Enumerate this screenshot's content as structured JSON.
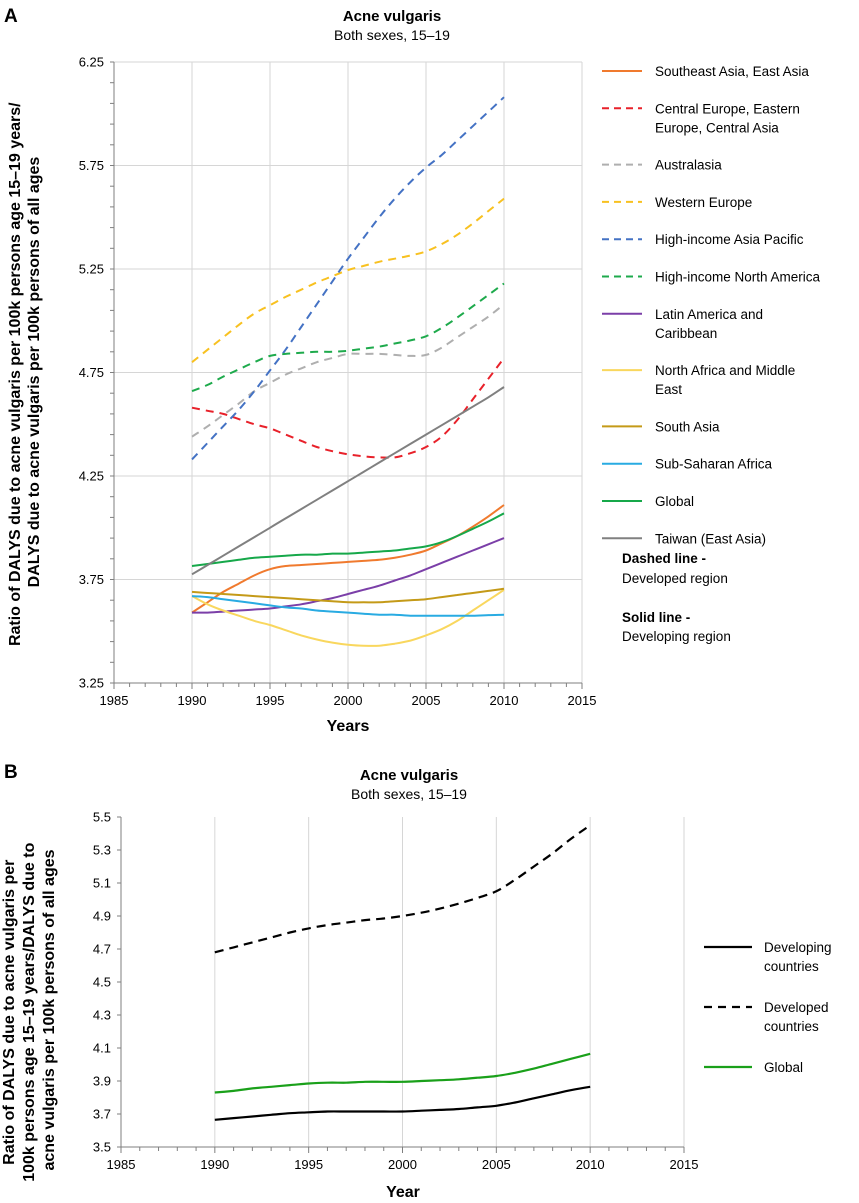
{
  "panels": [
    {
      "letter": "A",
      "chart_data": {
        "type": "line",
        "title": "Acne vulgaris",
        "subtitle": "Both sexes, 15–19",
        "xlabel": "Years",
        "ylabel": [
          "Ratio of DALYS due to acne vulgaris per 100k persons age 15–19 years/",
          "DALYS due to acne vulgaris per 100k persons of all ages"
        ],
        "xlim": [
          1985,
          2015
        ],
        "ylim": [
          3.25,
          6.25
        ],
        "xticks": [
          1985,
          1990,
          1995,
          2000,
          2005,
          2010,
          2015
        ],
        "yticks": [
          3.25,
          3.75,
          4.25,
          4.75,
          5.25,
          5.75,
          6.25
        ],
        "ytick_labels": [
          "3.25",
          "3.75",
          "4.25",
          "4.75",
          "5.25",
          "5.75",
          "6.25"
        ],
        "grid": "horizontal and vertical",
        "legend_position": "right",
        "x": [
          1990,
          1991,
          1992,
          1993,
          1994,
          1995,
          1996,
          1997,
          1998,
          1999,
          2000,
          2001,
          2002,
          2003,
          2004,
          2005,
          2006,
          2007,
          2008,
          2009,
          2010
        ],
        "series": [
          {
            "name": "Southeast Asia, East Asia",
            "color": "#F07A2E",
            "dash": false,
            "values": [
              3.59,
              3.64,
              3.69,
              3.73,
              3.77,
              3.8,
              3.815,
              3.82,
              3.825,
              3.83,
              3.835,
              3.84,
              3.845,
              3.855,
              3.87,
              3.89,
              3.925,
              3.96,
              4.005,
              4.055,
              4.11
            ]
          },
          {
            "name": "Central Europe, Eastern Europe, Central Asia",
            "color": "#E8212A",
            "dash": true,
            "values": [
              4.58,
              4.565,
              4.55,
              4.525,
              4.5,
              4.48,
              4.45,
              4.42,
              4.39,
              4.37,
              4.355,
              4.345,
              4.34,
              4.34,
              4.36,
              4.39,
              4.44,
              4.52,
              4.62,
              4.72,
              4.82
            ]
          },
          {
            "name": "Australasia",
            "color": "#AFAFAF",
            "dash": true,
            "values": [
              4.44,
              4.49,
              4.545,
              4.6,
              4.66,
              4.7,
              4.74,
              4.77,
              4.8,
              4.82,
              4.84,
              4.84,
              4.84,
              4.835,
              4.83,
              4.835,
              4.87,
              4.92,
              4.97,
              5.02,
              5.08
            ]
          },
          {
            "name": "Western Europe",
            "color": "#F8C120",
            "dash": true,
            "values": [
              4.8,
              4.86,
              4.92,
              4.98,
              5.035,
              5.075,
              5.115,
              5.15,
              5.185,
              5.215,
              5.245,
              5.265,
              5.285,
              5.3,
              5.315,
              5.335,
              5.37,
              5.415,
              5.47,
              5.53,
              5.59
            ]
          },
          {
            "name": "High-income Asia Pacific",
            "color": "#4472C4",
            "dash": true,
            "values": [
              4.33,
              4.41,
              4.49,
              4.57,
              4.66,
              4.76,
              4.86,
              4.97,
              5.08,
              5.19,
              5.3,
              5.4,
              5.5,
              5.59,
              5.67,
              5.74,
              5.8,
              5.87,
              5.94,
              6.01,
              6.08
            ]
          },
          {
            "name": "High-income North America",
            "color": "#1EAA4C",
            "dash": true,
            "values": [
              4.66,
              4.69,
              4.73,
              4.765,
              4.8,
              4.83,
              4.84,
              4.845,
              4.85,
              4.85,
              4.855,
              4.865,
              4.875,
              4.89,
              4.905,
              4.925,
              4.965,
              5.015,
              5.07,
              5.125,
              5.18
            ]
          },
          {
            "name": "Latin America and Caribbean",
            "color": "#7B3FA8",
            "dash": false,
            "values": [
              3.59,
              3.59,
              3.595,
              3.6,
              3.605,
              3.61,
              3.62,
              3.63,
              3.645,
              3.66,
              3.68,
              3.7,
              3.72,
              3.745,
              3.77,
              3.8,
              3.83,
              3.86,
              3.89,
              3.92,
              3.95
            ]
          },
          {
            "name": "North Africa and Middle East",
            "color": "#F9D75E",
            "dash": false,
            "values": [
              3.67,
              3.63,
              3.6,
              3.575,
              3.55,
              3.53,
              3.505,
              3.48,
              3.46,
              3.445,
              3.435,
              3.43,
              3.43,
              3.44,
              3.455,
              3.48,
              3.51,
              3.55,
              3.6,
              3.65,
              3.7
            ]
          },
          {
            "name": "South Asia",
            "color": "#C49A18",
            "dash": false,
            "values": [
              3.69,
              3.685,
              3.68,
              3.675,
              3.67,
              3.665,
              3.66,
              3.655,
              3.65,
              3.645,
              3.64,
              3.64,
              3.64,
              3.645,
              3.65,
              3.655,
              3.665,
              3.675,
              3.685,
              3.695,
              3.705
            ]
          },
          {
            "name": "Sub-Saharan Africa",
            "color": "#29ABE2",
            "dash": false,
            "values": [
              3.67,
              3.665,
              3.655,
              3.645,
              3.635,
              3.625,
              3.615,
              3.61,
              3.6,
              3.595,
              3.59,
              3.585,
              3.58,
              3.58,
              3.575,
              3.575,
              3.575,
              3.575,
              3.575,
              3.578,
              3.58
            ]
          },
          {
            "name": "Global",
            "color": "#16A84A",
            "dash": false,
            "values": [
              3.815,
              3.825,
              3.835,
              3.845,
              3.855,
              3.86,
              3.865,
              3.87,
              3.87,
              3.875,
              3.875,
              3.88,
              3.885,
              3.89,
              3.9,
              3.91,
              3.93,
              3.96,
              3.995,
              4.03,
              4.07
            ]
          },
          {
            "name": "Taiwan (East Asia)",
            "color": "#808080",
            "dash": false,
            "values": [
              3.775,
              3.82,
              3.865,
              3.91,
              3.955,
              4.0,
              4.045,
              4.09,
              4.135,
              4.18,
              4.225,
              4.27,
              4.315,
              4.36,
              4.405,
              4.45,
              4.495,
              4.54,
              4.585,
              4.63,
              4.68
            ]
          }
        ],
        "notes": [
          {
            "title": "Dashed line -",
            "text": "Developed region"
          },
          {
            "title": "Solid line -",
            "text": "Developing region"
          }
        ]
      }
    },
    {
      "letter": "B",
      "chart_data": {
        "type": "line",
        "title": "Acne vulgaris",
        "subtitle": "Both sexes, 15–19",
        "xlabel": "Year",
        "ylabel": [
          "Ratio of DALYS due to acne vulgaris per",
          "100k persons age 15–19 years/DALYS due to",
          "acne vulgaris per 100k persons of all ages"
        ],
        "xlim": [
          1985,
          2015
        ],
        "ylim": [
          3.5,
          5.5
        ],
        "xticks": [
          1985,
          1990,
          1995,
          2000,
          2005,
          2010,
          2015
        ],
        "yticks": [
          3.5,
          3.7,
          3.9,
          4.1,
          4.3,
          4.5,
          4.7,
          4.9,
          5.1,
          5.3,
          5.5
        ],
        "ytick_labels": [
          "3.5",
          "3.7",
          "3.9",
          "4.1",
          "4.3",
          "4.5",
          "4.7",
          "4.9",
          "5.1",
          "5.3",
          "5.5"
        ],
        "grid": "vertical",
        "legend_position": "right",
        "x": [
          1990,
          1991,
          1992,
          1993,
          1994,
          1995,
          1996,
          1997,
          1998,
          1999,
          2000,
          2001,
          2002,
          2003,
          2004,
          2005,
          2006,
          2007,
          2008,
          2009,
          2010
        ],
        "series": [
          {
            "name": [
              "Developing",
              "countries"
            ],
            "color": "#000000",
            "dash": false,
            "width": 2.2,
            "values": [
              3.665,
              3.675,
              3.685,
              3.695,
              3.705,
              3.71,
              3.715,
              3.715,
              3.715,
              3.715,
              3.715,
              3.72,
              3.725,
              3.73,
              3.74,
              3.75,
              3.77,
              3.795,
              3.82,
              3.845,
              3.865
            ]
          },
          {
            "name": [
              "Developed",
              "countries"
            ],
            "color": "#000000",
            "dash": true,
            "width": 2.2,
            "values": [
              4.68,
              4.71,
              4.74,
              4.77,
              4.8,
              4.825,
              4.845,
              4.86,
              4.875,
              4.885,
              4.9,
              4.92,
              4.945,
              4.975,
              5.01,
              5.05,
              5.12,
              5.2,
              5.28,
              5.37,
              5.45
            ]
          },
          {
            "name": [
              "Global"
            ],
            "color": "#1AA01A",
            "dash": false,
            "width": 2.2,
            "values": [
              3.83,
              3.84,
              3.855,
              3.865,
              3.875,
              3.885,
              3.89,
              3.89,
              3.895,
              3.895,
              3.895,
              3.9,
              3.905,
              3.91,
              3.92,
              3.93,
              3.95,
              3.975,
              4.005,
              4.035,
              4.065
            ]
          }
        ]
      }
    }
  ]
}
